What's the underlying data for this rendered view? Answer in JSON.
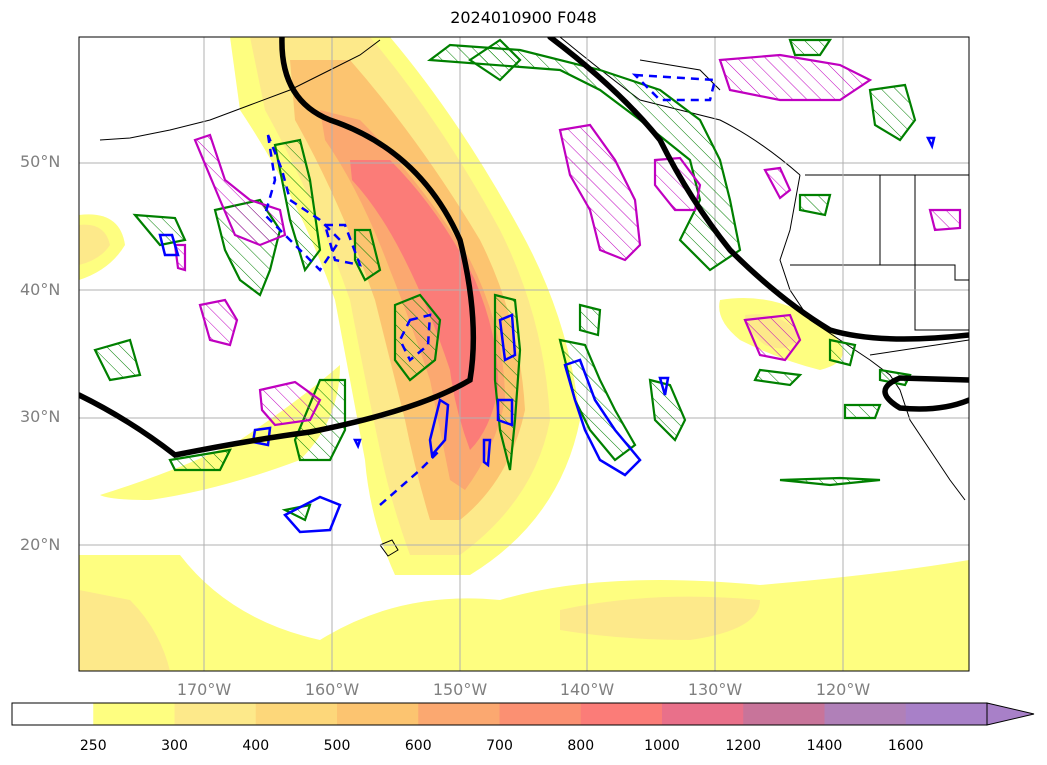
{
  "title": "2024010900 F048",
  "lat_labels": [
    "50°N",
    "40°N",
    "30°N",
    "20°N"
  ],
  "lon_labels": [
    "170°W",
    "160°W",
    "150°W",
    "140°W",
    "130°W",
    "120°W"
  ],
  "colorbar": {
    "ticks": [
      "250",
      "300",
      "400",
      "500",
      "600",
      "700",
      "800",
      "1000",
      "1200",
      "1400",
      "1600"
    ],
    "colors": [
      "#ffffff",
      "#fefe80",
      "#fde98a",
      "#fdd77a",
      "#fcc470",
      "#fba870",
      "#fb9072",
      "#fb7c78",
      "#e9708a",
      "#c8749a",
      "#b080b8",
      "#a880c8"
    ],
    "extend": "max"
  },
  "contour_colors": {
    "filled_ivt": "#f5c060",
    "jet_line": "#000000",
    "green_hatch": "#008000",
    "blue": "#0000ff",
    "magenta": "#c000c0"
  }
}
